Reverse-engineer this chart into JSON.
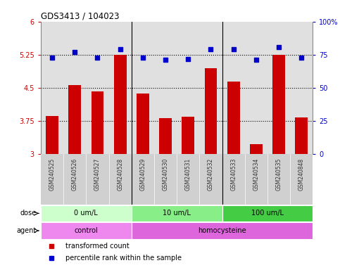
{
  "title": "GDS3413 / 104023",
  "samples": [
    "GSM240525",
    "GSM240526",
    "GSM240527",
    "GSM240528",
    "GSM240529",
    "GSM240530",
    "GSM240531",
    "GSM240532",
    "GSM240533",
    "GSM240534",
    "GSM240535",
    "GSM240848"
  ],
  "transformed_count": [
    3.87,
    4.57,
    4.42,
    5.25,
    4.38,
    3.82,
    3.85,
    4.95,
    4.65,
    3.22,
    5.25,
    3.83
  ],
  "percentile_rank": [
    73,
    77,
    73,
    79,
    73,
    71,
    72,
    79,
    79,
    71,
    81,
    73
  ],
  "ylim_left": [
    3.0,
    6.0
  ],
  "ylim_right": [
    0,
    100
  ],
  "yticks_left": [
    3.0,
    3.75,
    4.5,
    5.25,
    6.0
  ],
  "ytick_labels_left": [
    "3",
    "3.75",
    "4.5",
    "5.25",
    "6"
  ],
  "yticks_right": [
    0,
    25,
    50,
    75,
    100
  ],
  "ytick_labels_right": [
    "0",
    "25",
    "50",
    "75",
    "100%"
  ],
  "hlines": [
    3.75,
    4.5,
    5.25
  ],
  "bar_color": "#cc0000",
  "dot_color": "#0000cc",
  "dose_groups": [
    {
      "label": "0 um/L",
      "start": 0,
      "end": 4,
      "color": "#ccffcc"
    },
    {
      "label": "10 um/L",
      "start": 4,
      "end": 8,
      "color": "#88ee88"
    },
    {
      "label": "100 um/L",
      "start": 8,
      "end": 12,
      "color": "#44cc44"
    }
  ],
  "agent_groups": [
    {
      "label": "control",
      "start": 0,
      "end": 4,
      "color": "#ee88ee"
    },
    {
      "label": "homocysteine",
      "start": 4,
      "end": 12,
      "color": "#dd66dd"
    }
  ],
  "dose_label": "dose",
  "agent_label": "agent",
  "legend_bar_label": "transformed count",
  "legend_dot_label": "percentile rank within the sample",
  "tick_color_left": "#cc0000",
  "tick_color_right": "#0000cc",
  "grid_color": "#000000",
  "bg_color": "#ffffff",
  "plot_bg": "#e0e0e0",
  "separator_color": "#000000",
  "xtick_bg": "#d0d0d0"
}
